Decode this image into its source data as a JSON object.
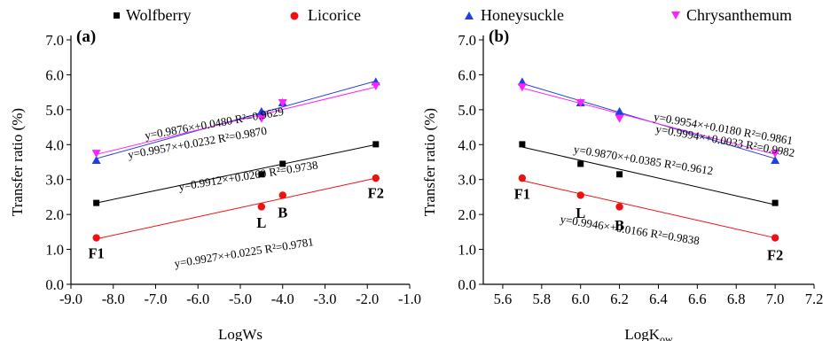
{
  "legend": [
    {
      "label": "Wolfberry",
      "marker": "square",
      "color": "#000000"
    },
    {
      "label": "Licorice",
      "marker": "circle",
      "color": "#ee1111"
    },
    {
      "label": "Honeysuckle",
      "marker": "triangle-up",
      "color": "#1f3fe0"
    },
    {
      "label": "Chrysanthemum",
      "marker": "triangle-down",
      "color": "#ff22ff"
    }
  ],
  "chart_data": [
    {
      "type": "scatter",
      "panel_label": "(a)",
      "xlabel": "LogWs",
      "ylabel": "Transfer ratio (%)",
      "xlim": [
        -9.0,
        -1.0
      ],
      "ylim": [
        0.0,
        7.0
      ],
      "xticks": [
        "-9.0",
        "-8.0",
        "-7.0",
        "-6.0",
        "-5.0",
        "-4.0",
        "-3.0",
        "-2.0",
        "-1.0"
      ],
      "yticks": [
        "0.0",
        "1.0",
        "2.0",
        "3.0",
        "4.0",
        "5.0",
        "6.0",
        "7.0"
      ],
      "series": [
        {
          "name": "Wolfberry",
          "x": [
            -8.4,
            -4.5,
            -4.0,
            -1.8
          ],
          "y": [
            2.33,
            3.15,
            3.45,
            4.01
          ],
          "fit": [
            2.33,
            4.0
          ]
        },
        {
          "name": "Licorice",
          "x": [
            -8.4,
            -4.5,
            -4.0,
            -1.8
          ],
          "y": [
            1.33,
            2.22,
            2.55,
            3.04
          ],
          "fit": [
            1.3,
            3.04
          ]
        },
        {
          "name": "Honeysuckle",
          "x": [
            -8.4,
            -4.5,
            -4.0,
            -1.8
          ],
          "y": [
            3.55,
            4.95,
            5.2,
            5.8
          ],
          "fit": [
            3.6,
            5.82
          ]
        },
        {
          "name": "Chrysanthemum",
          "x": [
            -8.4,
            -4.5,
            -4.0,
            -1.8
          ],
          "y": [
            3.75,
            4.75,
            5.2,
            5.68
          ],
          "fit": [
            3.72,
            5.65
          ]
        }
      ],
      "point_labels": [
        {
          "text": "F1",
          "x": -8.4,
          "y": 0.9
        },
        {
          "text": "L",
          "x": -4.5,
          "y": 1.78
        },
        {
          "text": "B",
          "x": -4.0,
          "y": 2.07
        },
        {
          "text": "F2",
          "x": -1.8,
          "y": 2.62
        }
      ],
      "equations": [
        {
          "text": "y=0.9876×+0.0480   R²=0.9629",
          "x": -5.6,
          "y": 4.5,
          "angle": -10
        },
        {
          "text": "y=0.9957×+0.0232   R²=0.9870",
          "x": -6.0,
          "y": 3.95,
          "angle": -10
        },
        {
          "text": "y=0.9912×+0.0260   R²=0.9738",
          "x": -4.8,
          "y": 3.0,
          "angle": -9
        },
        {
          "text": "y=0.9927×+0.0225   R²=0.9781",
          "x": -4.9,
          "y": 0.8,
          "angle": -9
        }
      ]
    },
    {
      "type": "scatter",
      "panel_label": "(b)",
      "xlabel": "LogKow",
      "xlabel_main": "LogK",
      "xlabel_sub": "ow",
      "ylabel": "Transfer ratio (%)",
      "xlim": [
        5.5,
        7.2
      ],
      "ylim": [
        0.0,
        7.0
      ],
      "xticks": [
        "5.6",
        "5.8",
        "6.0",
        "6.2",
        "6.4",
        "6.6",
        "6.8",
        "7.0",
        "7.2"
      ],
      "yticks": [
        "0.0",
        "1.0",
        "2.0",
        "3.0",
        "4.0",
        "5.0",
        "6.0",
        "7.0"
      ],
      "series": [
        {
          "name": "Wolfberry",
          "x": [
            5.7,
            6.0,
            6.2,
            7.0
          ],
          "y": [
            4.01,
            3.45,
            3.15,
            2.33
          ],
          "fit": [
            3.93,
            2.28
          ]
        },
        {
          "name": "Licorice",
          "x": [
            5.7,
            6.0,
            6.2,
            7.0
          ],
          "y": [
            3.04,
            2.55,
            2.22,
            1.33
          ],
          "fit": [
            2.97,
            1.33
          ]
        },
        {
          "name": "Honeysuckle",
          "x": [
            5.7,
            6.0,
            6.2,
            7.0
          ],
          "y": [
            5.8,
            5.2,
            4.95,
            3.55
          ],
          "fit": [
            5.75,
            3.6
          ]
        },
        {
          "name": "Chrysanthemum",
          "x": [
            5.7,
            6.0,
            6.2,
            7.0
          ],
          "y": [
            5.65,
            5.2,
            4.75,
            3.75
          ],
          "fit": [
            5.62,
            3.72
          ]
        }
      ],
      "point_labels": [
        {
          "text": "F1",
          "x": 5.7,
          "y": 2.6
        },
        {
          "text": "L",
          "x": 6.0,
          "y": 2.05
        },
        {
          "text": "B",
          "x": 6.2,
          "y": 1.7
        },
        {
          "text": "F2",
          "x": 7.0,
          "y": 0.85
        }
      ],
      "equations": [
        {
          "text": "y=0.9954×+0.0180   R²=0.9861",
          "x": 6.73,
          "y": 4.35,
          "angle": 10
        },
        {
          "text": "y=0.9994×+0.0033   R²=0.9982",
          "x": 6.74,
          "y": 4.0,
          "angle": 10
        },
        {
          "text": "y=0.9870×+0.0385   R²=0.9612",
          "x": 6.32,
          "y": 3.45,
          "angle": 9
        },
        {
          "text": "y=0.9946×+0.0166   R²=0.9838",
          "x": 6.25,
          "y": 1.45,
          "angle": 9
        }
      ]
    }
  ]
}
